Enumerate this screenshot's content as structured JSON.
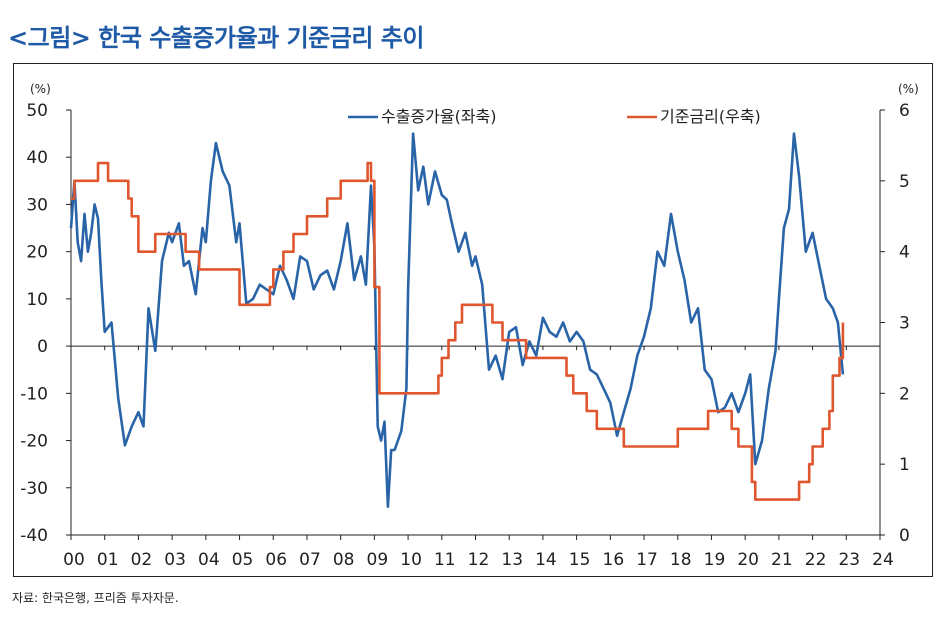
{
  "title": "<그림> 한국 수출증가율과 기준금리 추이",
  "source": "자료: 한국은행, 프리즘 투자자문.",
  "colors": {
    "export": "#2a64a8",
    "rate": "#e0572f",
    "title": "#1f5aa6"
  },
  "chart_data": {
    "type": "line",
    "title": "<그림> 한국 수출증가율과 기준금리 추이",
    "left_unit": "(%)",
    "right_unit": "(%)",
    "x_ticks": [
      "00",
      "01",
      "02",
      "03",
      "04",
      "05",
      "06",
      "07",
      "08",
      "09",
      "10",
      "11",
      "12",
      "13",
      "14",
      "15",
      "16",
      "17",
      "18",
      "19",
      "20",
      "21",
      "22",
      "23",
      "24"
    ],
    "x_range": [
      2000,
      2024
    ],
    "left_axis": {
      "range": [
        -40,
        50
      ],
      "ticks": [
        "50",
        "40",
        "30",
        "20",
        "10",
        "0",
        "-10",
        "-20",
        "-30",
        "-40"
      ]
    },
    "right_axis": {
      "range": [
        0,
        6
      ],
      "ticks": [
        "6",
        "5",
        "4",
        "3",
        "2",
        "1",
        "0"
      ]
    },
    "legend": {
      "export": "수출증가율(좌축)",
      "rate": "기준금리(우축)",
      "position": "top"
    },
    "series": [
      {
        "name": "수출증가율(좌축)",
        "axis": "left",
        "x": [
          2000,
          2000.1,
          2000.2,
          2000.3,
          2000.4,
          2000.5,
          2000.6,
          2000.7,
          2000.8,
          2000.9,
          2001.0,
          2001.2,
          2001.4,
          2001.6,
          2001.8,
          2002.0,
          2002.15,
          2002.3,
          2002.5,
          2002.7,
          2002.9,
          2003.0,
          2003.2,
          2003.35,
          2003.5,
          2003.7,
          2003.9,
          2004.0,
          2004.15,
          2004.3,
          2004.5,
          2004.7,
          2004.9,
          2005.0,
          2005.2,
          2005.4,
          2005.6,
          2005.8,
          2006.0,
          2006.2,
          2006.4,
          2006.6,
          2006.8,
          2007.0,
          2007.2,
          2007.4,
          2007.6,
          2007.8,
          2008.0,
          2008.2,
          2008.4,
          2008.6,
          2008.75,
          2008.9,
          2009.0,
          2009.1,
          2009.2,
          2009.3,
          2009.4,
          2009.5,
          2009.6,
          2009.8,
          2009.95,
          2010.0,
          2010.15,
          2010.3,
          2010.45,
          2010.6,
          2010.8,
          2011.0,
          2011.15,
          2011.3,
          2011.5,
          2011.7,
          2011.9,
          2012.0,
          2012.2,
          2012.4,
          2012.6,
          2012.8,
          2013.0,
          2013.2,
          2013.4,
          2013.6,
          2013.8,
          2014.0,
          2014.2,
          2014.4,
          2014.6,
          2014.8,
          2015.0,
          2015.2,
          2015.4,
          2015.6,
          2015.8,
          2016.0,
          2016.2,
          2016.4,
          2016.6,
          2016.8,
          2017.0,
          2017.2,
          2017.4,
          2017.6,
          2017.8,
          2018.0,
          2018.2,
          2018.4,
          2018.6,
          2018.8,
          2019.0,
          2019.2,
          2019.4,
          2019.6,
          2019.8,
          2020.0,
          2020.15,
          2020.3,
          2020.5,
          2020.7,
          2020.9,
          2021.0,
          2021.15,
          2021.3,
          2021.45,
          2021.6,
          2021.8,
          2022.0,
          2022.2,
          2022.4,
          2022.6,
          2022.75,
          2022.9
        ],
        "values": [
          25,
          35,
          22,
          18,
          28,
          20,
          24,
          30,
          27,
          14,
          3,
          5,
          -11,
          -21,
          -17,
          -14,
          -17,
          8,
          -1,
          18,
          24,
          22,
          26,
          17,
          18,
          11,
          25,
          22,
          35,
          43,
          37,
          34,
          22,
          26,
          9,
          10,
          13,
          12,
          11,
          17,
          14,
          10,
          19,
          18,
          12,
          15,
          16,
          12,
          18,
          26,
          14,
          19,
          13,
          34,
          21,
          -17,
          -20,
          -16,
          -34,
          -22,
          -22,
          -18,
          -9,
          12,
          45,
          33,
          38,
          30,
          37,
          32,
          31,
          26,
          20,
          24,
          17,
          19,
          13,
          -5,
          -2,
          -7,
          3,
          4,
          -4,
          1,
          -2,
          6,
          3,
          2,
          5,
          1,
          3,
          1,
          -5,
          -6,
          -9,
          -12,
          -19,
          -14,
          -9,
          -2,
          2,
          8,
          20,
          17,
          28,
          20,
          14,
          5,
          8,
          -5,
          -7,
          -14,
          -13,
          -10,
          -14,
          -10,
          -6,
          -25,
          -20,
          -9,
          -1,
          10,
          25,
          29,
          45,
          36,
          20,
          24,
          17,
          10,
          8,
          5,
          -6
        ]
      },
      {
        "name": "기준금리(우축)",
        "axis": "right",
        "x": [
          2000,
          2000.1,
          2000.3,
          2000.7,
          2000.8,
          2001.1,
          2001.5,
          2001.7,
          2001.8,
          2002.0,
          2002.4,
          2002.5,
          2003.0,
          2003.4,
          2003.5,
          2003.8,
          2004.0,
          2004.7,
          2005.0,
          2005.8,
          2005.9,
          2006.0,
          2006.3,
          2006.6,
          2007.0,
          2007.6,
          2008.0,
          2008.5,
          2008.8,
          2008.9,
          2009.0,
          2009.15,
          2010.0,
          2010.5,
          2010.9,
          2011.0,
          2011.2,
          2011.4,
          2011.6,
          2012.0,
          2012.5,
          2012.8,
          2013.0,
          2013.5,
          2014.0,
          2014.7,
          2014.9,
          2015.0,
          2015.3,
          2015.6,
          2016.0,
          2016.4,
          2017.0,
          2017.9,
          2018.0,
          2018.9,
          2019.1,
          2019.6,
          2019.8,
          2020.0,
          2020.2,
          2020.3,
          2020.5,
          2021.0,
          2021.6,
          2021.9,
          2022.0,
          2022.3,
          2022.5,
          2022.6,
          2022.8,
          2022.9
        ],
        "values": [
          4.75,
          5.0,
          5.0,
          5.0,
          5.25,
          5.0,
          5.0,
          4.75,
          4.5,
          4.0,
          4.0,
          4.25,
          4.25,
          4.0,
          4.0,
          3.75,
          3.75,
          3.75,
          3.25,
          3.25,
          3.5,
          3.75,
          4.0,
          4.25,
          4.5,
          4.75,
          5.0,
          5.0,
          5.25,
          5.0,
          3.5,
          2.0,
          2.0,
          2.0,
          2.25,
          2.5,
          2.75,
          3.0,
          3.25,
          3.25,
          3.0,
          2.75,
          2.75,
          2.5,
          2.5,
          2.25,
          2.0,
          2.0,
          1.75,
          1.5,
          1.5,
          1.25,
          1.25,
          1.25,
          1.5,
          1.75,
          1.75,
          1.5,
          1.25,
          1.25,
          0.75,
          0.5,
          0.5,
          0.5,
          0.75,
          1.0,
          1.25,
          1.5,
          1.75,
          2.25,
          2.5,
          3.0
        ]
      }
    ]
  }
}
